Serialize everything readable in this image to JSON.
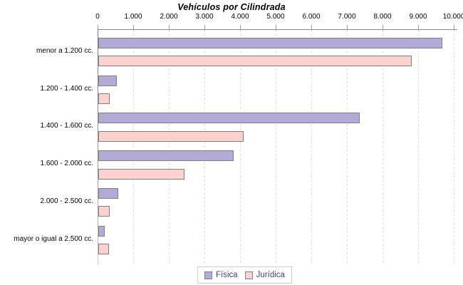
{
  "title": "Vehículos por Cilindrada",
  "chart_data": {
    "type": "bar",
    "orientation": "horizontal",
    "title": "Vehículos por Cilindrada",
    "categories": [
      "menor a 1.200 cc.",
      "1.200 - 1.400 cc.",
      "1.400 - 1.600 cc.",
      "1.600 - 2.000 cc.",
      "2.000 - 2.500 cc.",
      "mayor o igual a 2.500 cc."
    ],
    "series": [
      {
        "name": "Física",
        "color": "#b4aad7",
        "border": "#7f7f7f",
        "values": [
          9650,
          520,
          7340,
          3790,
          550,
          170
        ]
      },
      {
        "name": "Jurídica",
        "color": "#ffd1ce",
        "border": "#7f7f7f",
        "values": [
          8790,
          320,
          4070,
          2410,
          320,
          290
        ]
      }
    ],
    "xlim": [
      0,
      10000
    ],
    "x_tick_values": [
      0,
      1000,
      2000,
      3000,
      4000,
      5000,
      6000,
      7000,
      8000,
      9000,
      10000
    ],
    "x_tick_labels": [
      "0",
      "1.000",
      "2.000",
      "3.000",
      "4.000",
      "5.000",
      "6.000",
      "7.000",
      "8.000",
      "9.000",
      "10.000"
    ],
    "grid": "vertical-dashed",
    "legend_position": "bottom-center"
  },
  "colors": {
    "background": "#ffffff",
    "axis_line": "#8c8c8c",
    "grid_line": "#dcdcdc",
    "title_text": "#000000",
    "tick_text": "#000000",
    "category_text": "#000000",
    "legend_text": "#483d8b",
    "legend_border": "#cccccc",
    "bar_border": "#7f7f7f"
  }
}
